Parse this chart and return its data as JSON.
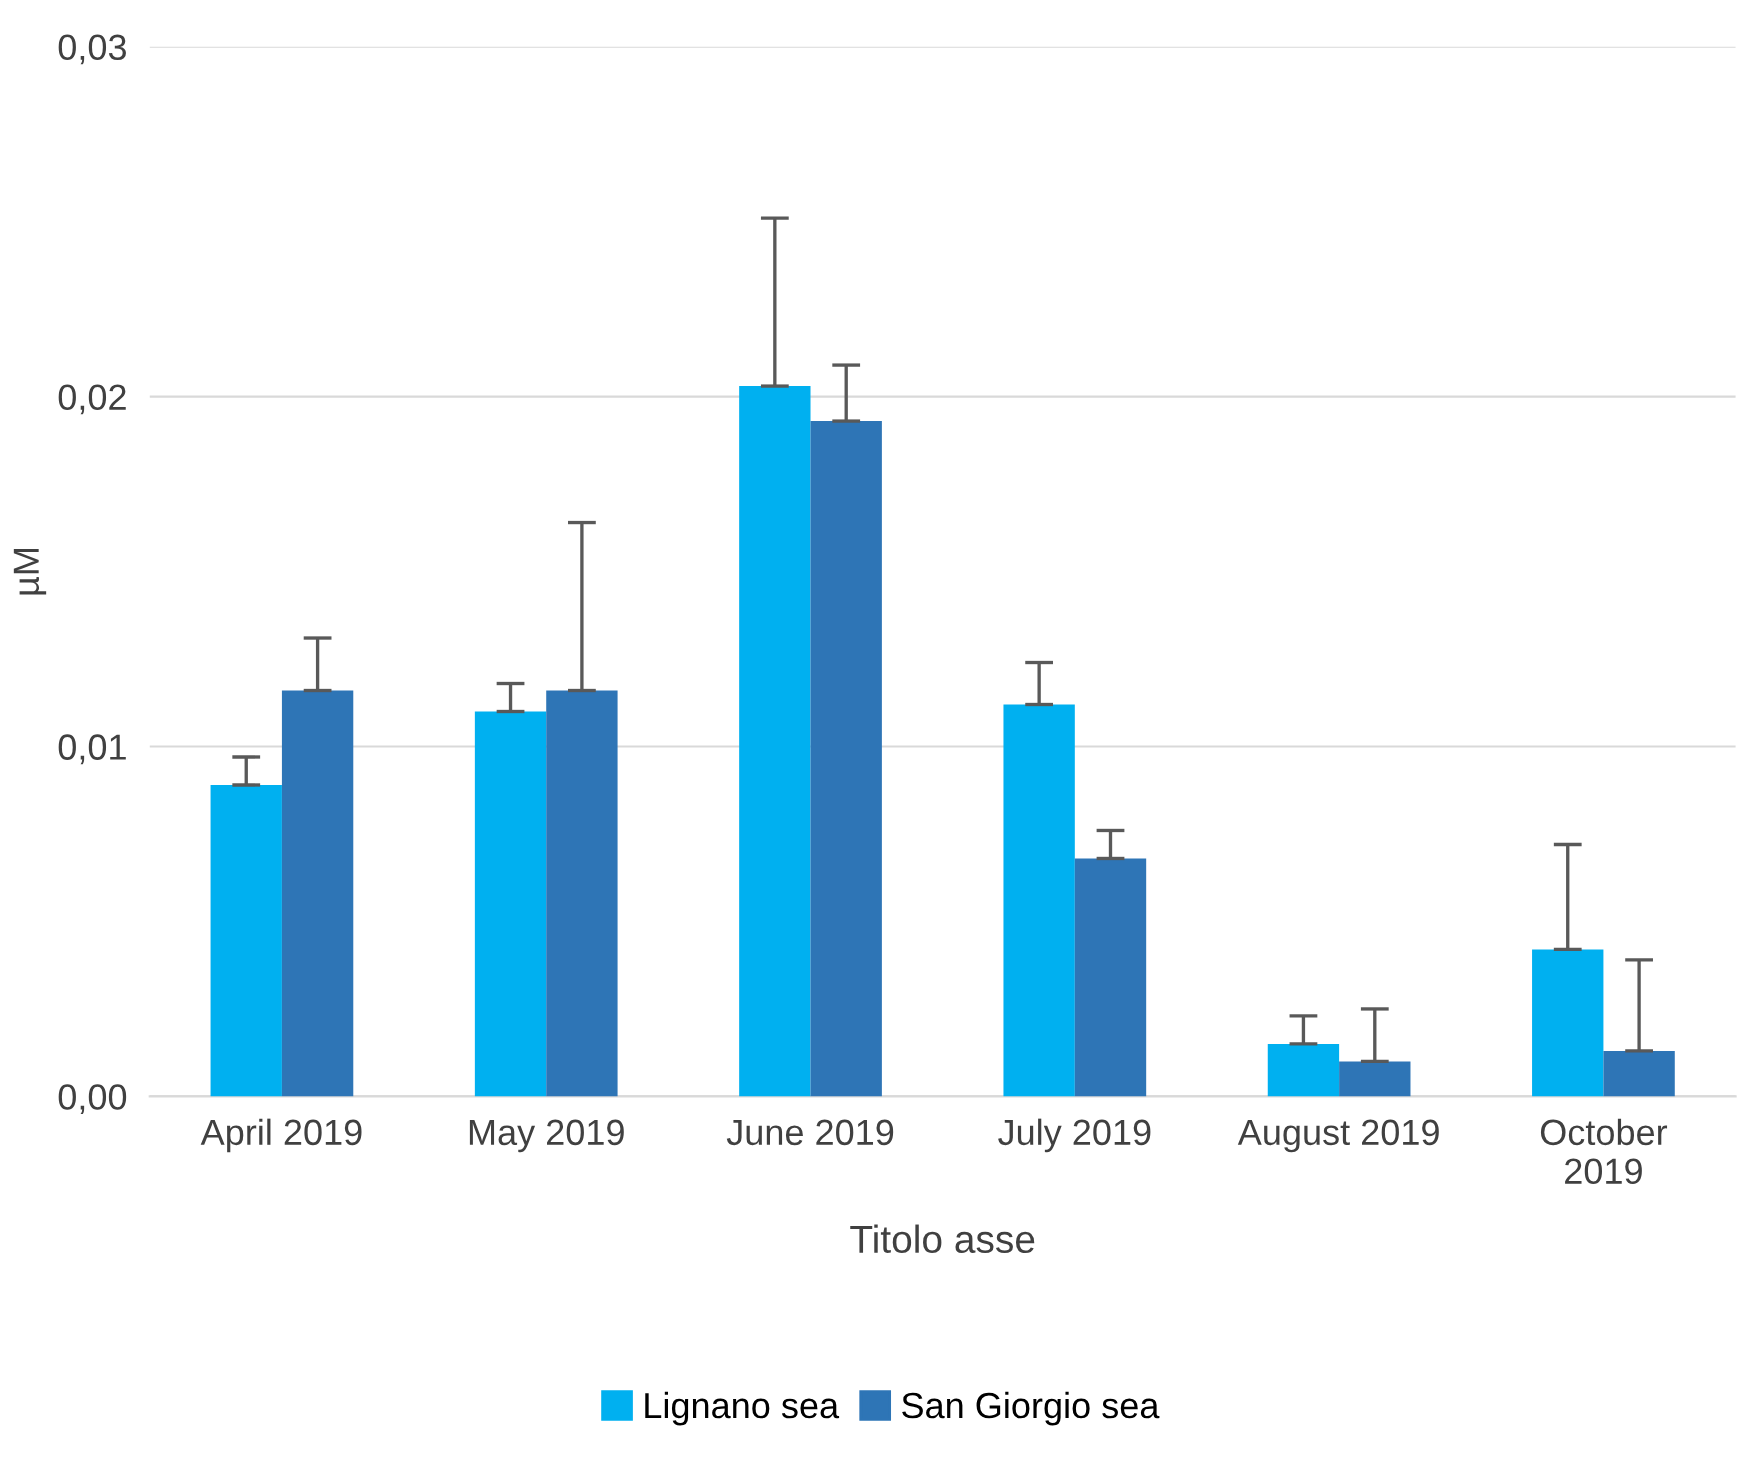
{
  "chart_data": {
    "type": "bar",
    "xlabel": "Titolo asse",
    "ylabel": "µM",
    "categories": [
      "April 2019",
      "May 2019",
      "June 2019",
      "July 2019",
      "August 2019",
      "October\n2019"
    ],
    "series": [
      {
        "name": "Lignano sea",
        "color": "#00b0f0",
        "values": [
          0.0089,
          0.011,
          0.0203,
          0.0112,
          0.0015,
          0.0042
        ],
        "errors": [
          [
            0.0089,
            0.0097
          ],
          [
            0.011,
            0.0118
          ],
          [
            0.0203,
            0.0251
          ],
          [
            0.0112,
            0.0124
          ],
          [
            0.0015,
            0.0023
          ],
          [
            0.0042,
            0.0072
          ]
        ]
      },
      {
        "name": "San Giorgio sea",
        "color": "#2e75b6",
        "values": [
          0.0116,
          0.0116,
          0.0193,
          0.0068,
          0.001,
          0.0013
        ],
        "errors": [
          [
            0.0116,
            0.0131
          ],
          [
            0.0116,
            0.0164
          ],
          [
            0.0193,
            0.0209
          ],
          [
            0.0068,
            0.0076
          ],
          [
            0.001,
            0.0025
          ],
          [
            0.0013,
            0.0039
          ]
        ]
      }
    ],
    "ylim": [
      0,
      0.03
    ],
    "yticks": [
      {
        "value": 0,
        "label": "0,00"
      },
      {
        "value": 0.01,
        "label": "0,01"
      },
      {
        "value": 0.02,
        "label": "0,02"
      },
      {
        "value": 0.03,
        "label": "0,03"
      }
    ],
    "grid": "y",
    "legend": "bottom"
  }
}
